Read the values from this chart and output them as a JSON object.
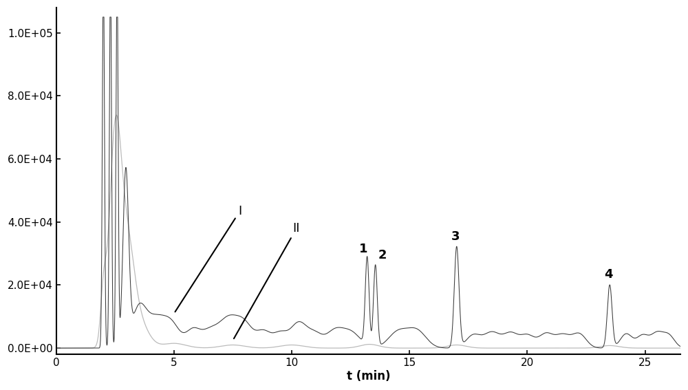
{
  "xlim": [
    0,
    26.5
  ],
  "ylim": [
    -2000,
    108000
  ],
  "yticks": [
    0,
    20000,
    40000,
    60000,
    80000,
    100000
  ],
  "ytick_labels": [
    "0.0E+00",
    "2.0E+04",
    "4.0E+04",
    "6.0E+04",
    "8.0E+04",
    "1.0E+05"
  ],
  "xticks": [
    0,
    5,
    10,
    15,
    20,
    25
  ],
  "xtick_labels": [
    "0",
    "5",
    "10",
    "15",
    "20",
    "25"
  ],
  "xlabel": "t (min)",
  "bg_color": "#ffffff",
  "line1_color": "#3a3a3a",
  "line2_color": "#bbbbbb"
}
